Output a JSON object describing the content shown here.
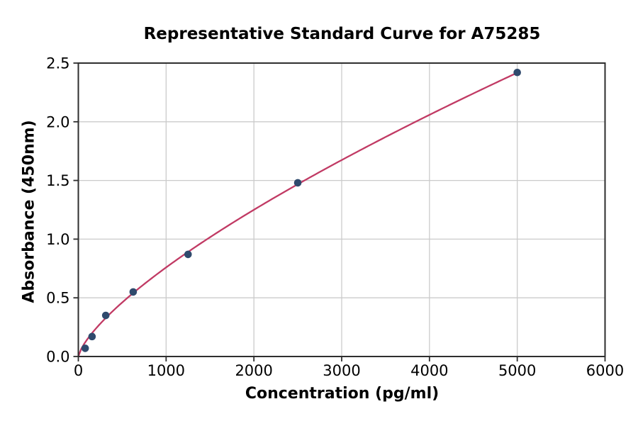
{
  "chart_data": {
    "type": "scatter",
    "title": "Representative Standard Curve for A75285",
    "xlabel": "Concentration (pg/ml)",
    "ylabel": "Absorbance (450nm)",
    "xlim": [
      0,
      6000
    ],
    "ylim": [
      0,
      2.5
    ],
    "x_ticks": [
      0,
      1000,
      2000,
      3000,
      4000,
      5000,
      6000
    ],
    "y_ticks": [
      0.0,
      0.5,
      1.0,
      1.5,
      2.0,
      2.5
    ],
    "grid": true,
    "legend": false,
    "points": [
      {
        "x": 78.1,
        "y": 0.07
      },
      {
        "x": 156.3,
        "y": 0.17
      },
      {
        "x": 312.5,
        "y": 0.35
      },
      {
        "x": 625,
        "y": 0.55
      },
      {
        "x": 1250,
        "y": 0.87
      },
      {
        "x": 2500,
        "y": 1.48
      },
      {
        "x": 5000,
        "y": 2.42
      }
    ],
    "fit_curve": {
      "type": "power",
      "a": 0.00525,
      "b": 0.72,
      "x_range": [
        0,
        5000
      ]
    },
    "colors": {
      "curve": "#c13a64",
      "marker": "#2f4a6d",
      "grid": "#cbcbcb",
      "axis": "#2e2e2e",
      "text": "#000000",
      "background": "#ffffff"
    }
  }
}
